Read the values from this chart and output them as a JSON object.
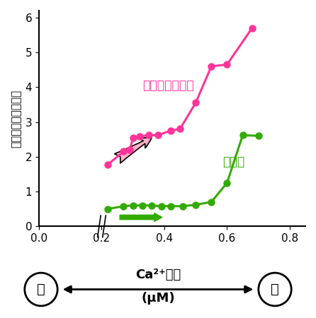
{
  "pink_x": [
    0.22,
    0.27,
    0.29,
    0.3,
    0.32,
    0.35,
    0.38,
    0.42,
    0.45,
    0.5,
    0.55,
    0.6,
    0.68
  ],
  "pink_y": [
    1.78,
    2.15,
    2.2,
    2.55,
    2.58,
    2.62,
    2.62,
    2.75,
    2.8,
    3.55,
    4.6,
    4.65,
    5.7
  ],
  "green_x": [
    0.22,
    0.27,
    0.3,
    0.33,
    0.36,
    0.39,
    0.42,
    0.46,
    0.5,
    0.55,
    0.6,
    0.65,
    0.7
  ],
  "green_y": [
    0.5,
    0.58,
    0.6,
    0.6,
    0.6,
    0.58,
    0.58,
    0.58,
    0.62,
    0.7,
    1.25,
    2.62,
    2.6
  ],
  "pink_color": "#FF3399",
  "green_color": "#33AA00",
  "pink_label": "リン酸化模倣体",
  "green_label": "野生型",
  "ylabel": "活性酸素種生成活性",
  "xlabel_main": "Ca²⁺濃度",
  "xlabel_unit": "(μM)",
  "low_label": "低",
  "high_label": "高",
  "xlim": [
    0.0,
    0.85
  ],
  "ylim": [
    0.0,
    6.2
  ],
  "xticks": [
    0.0,
    0.2,
    0.4,
    0.6,
    0.8
  ],
  "yticks": [
    0,
    1,
    2,
    3,
    4,
    5,
    6
  ],
  "bg_color": "#FFFFFF"
}
